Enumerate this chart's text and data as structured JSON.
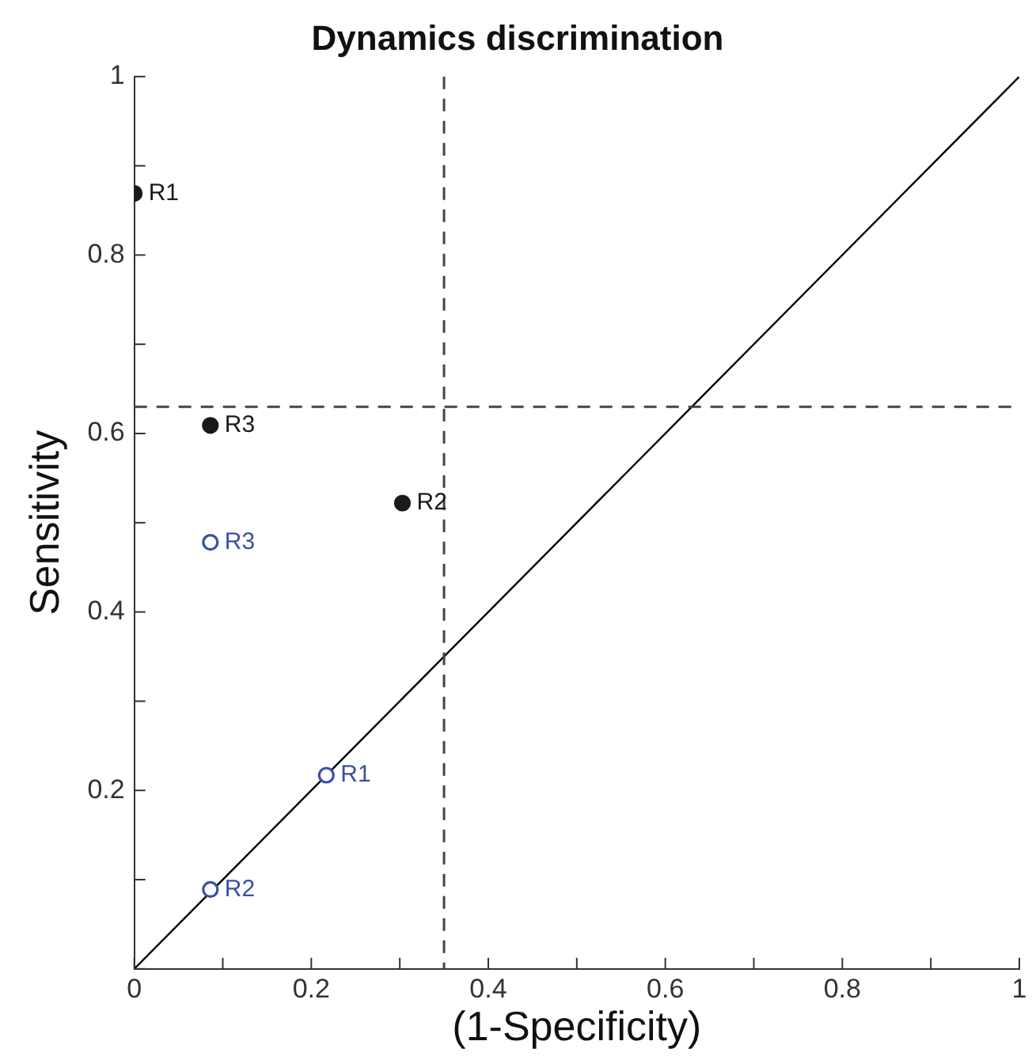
{
  "chart_data": {
    "type": "scatter",
    "title": "Dynamics discrimination",
    "xlabel": "(1-Specificity)",
    "ylabel": "Sensitivity",
    "series": [
      {
        "color": "#1a1a1a",
        "x": [
          0,
          0.303,
          0.086
        ],
        "values": [
          0.869,
          0.522,
          0.609
        ],
        "marker": "circle"
      },
      {
        "color": "#3a4fa8",
        "x": [
          0.217,
          0.086,
          0.086
        ],
        "values": [
          0.217,
          0.089,
          0.478
        ],
        "marker": "circle"
      },
      {
        "type": "line",
        "color": "#000000",
        "x": [
          0,
          1
        ],
        "values": [
          0,
          1
        ],
        "marker": "none",
        "line_style": "solid"
      }
    ],
    "annotations": [
      {
        "text": "R1",
        "x": 0,
        "y": 0.869
      },
      {
        "text": "R2",
        "x": 0.303,
        "y": 0.522
      },
      {
        "text": "R3",
        "x": 0.086,
        "y": 0.609
      },
      {
        "text": "R1",
        "x": 0.217,
        "y": 0.217
      },
      {
        "text": "R2",
        "x": 0.086,
        "y": 0.089
      },
      {
        "text": "R3",
        "x": 0.086,
        "y": 0.478
      }
    ],
    "ref_lines": [
      {
        "axis": "x",
        "value": 0.35,
        "color": "#444444",
        "line_style": "dashed"
      },
      {
        "axis": "y",
        "value": 0.63,
        "color": "#444444",
        "line_style": "dashed"
      }
    ],
    "xlim": [
      0,
      1
    ],
    "ylim": [
      0,
      1
    ],
    "xticks": [
      0,
      {
        "value": 0.1,
        "label": null
      },
      0.2,
      {
        "value": 0.3,
        "label": null
      },
      0.4,
      {
        "value": 0.5,
        "label": null
      },
      0.6,
      {
        "value": 0.7,
        "label": null
      },
      0.8,
      {
        "value": 0.9,
        "label": null
      },
      1
    ],
    "yticks": [
      {
        "value": 0,
        "label": null
      },
      {
        "value": 0.1,
        "label": null
      },
      0.2,
      {
        "value": 0.3,
        "label": null
      },
      0.4,
      {
        "value": 0.5,
        "label": null
      },
      0.6,
      {
        "value": 0.7,
        "label": null
      },
      0.8,
      {
        "value": 0.9,
        "label": null
      },
      1
    ],
    "grid": false,
    "legend": false
  }
}
